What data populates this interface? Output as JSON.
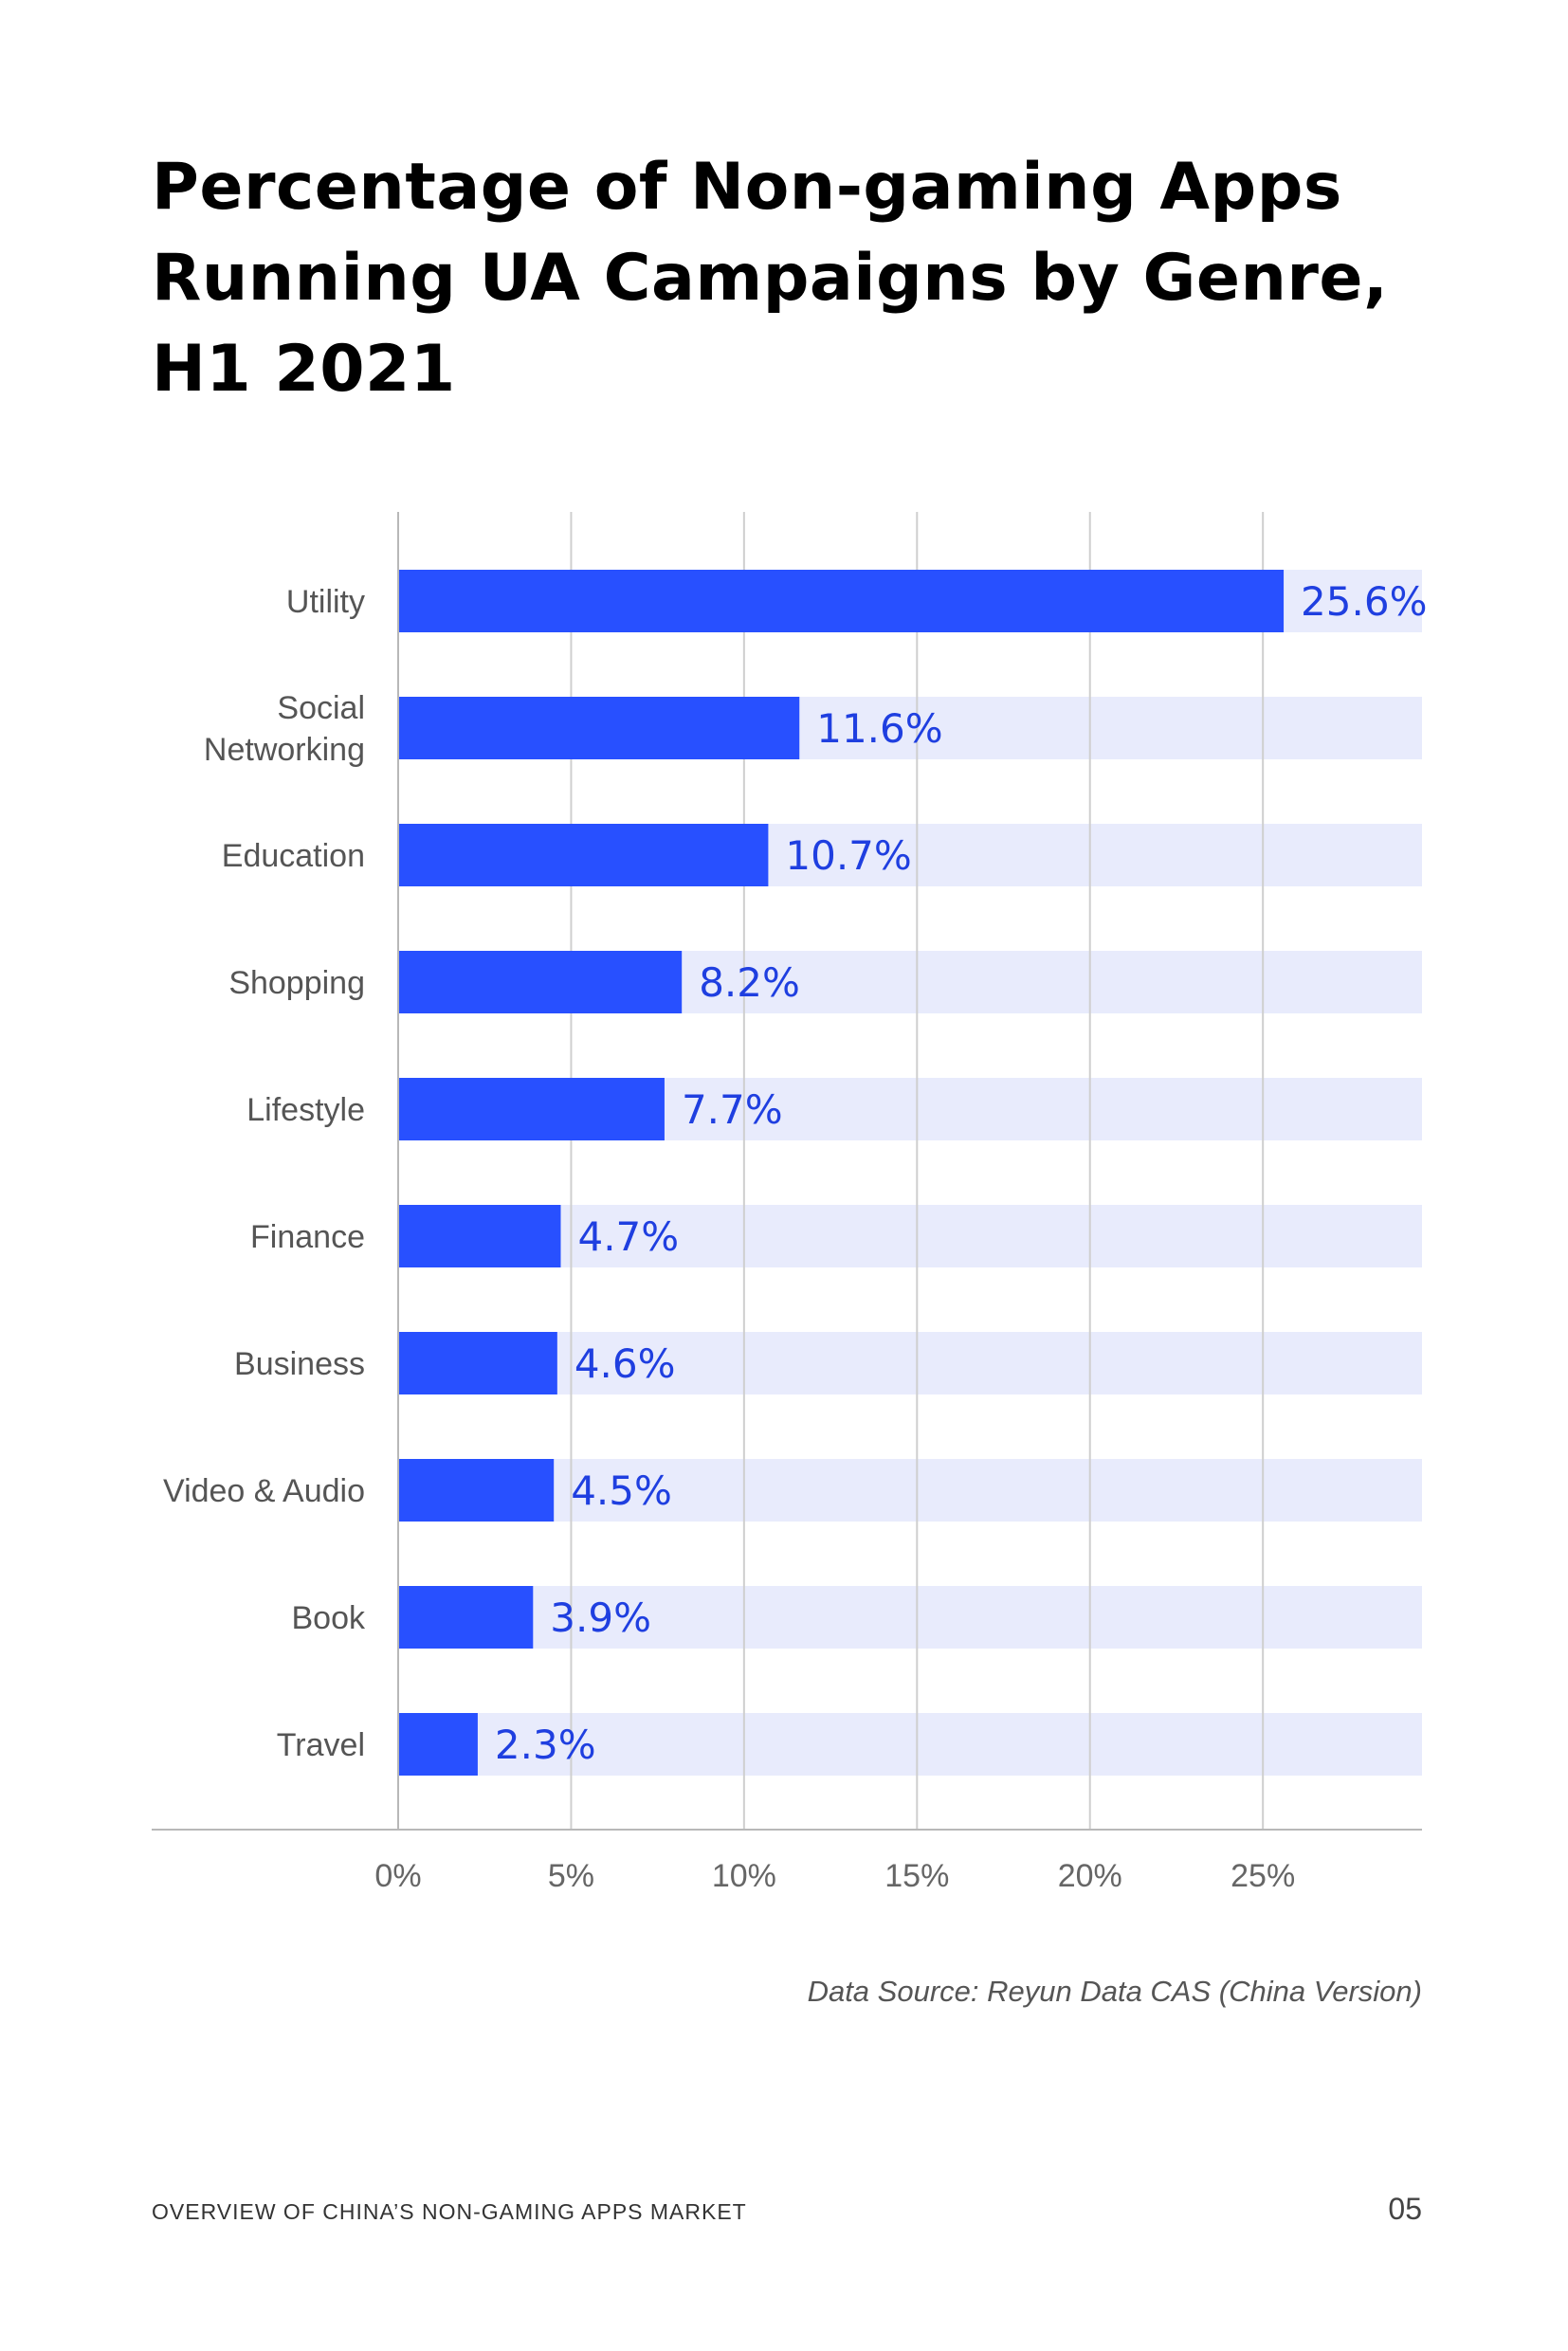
{
  "page": {
    "title_lines": [
      "Percentage of Non-gaming Apps",
      "Running UA Campaigns by Genre,",
      "H1 2021"
    ],
    "source": "Data Source: Reyun Data CAS (China Version)",
    "footer_left": "OVERVIEW OF CHINA’S NON-GAMING APPS MARKET",
    "page_number": "05"
  },
  "colors": {
    "bar": "#2850ff",
    "bar_background": "#e8ebfc",
    "value_label": "#1f3fe0",
    "category_label": "#555555",
    "grid": "#cfcfcf",
    "axis": "#b8b8b8"
  },
  "chart_data": {
    "type": "bar",
    "orientation": "horizontal",
    "title": "Percentage of Non-gaming Apps Running UA Campaigns by Genre, H1 2021",
    "categories": [
      [
        "Utility"
      ],
      [
        "Social",
        "Networking"
      ],
      [
        "Education"
      ],
      [
        "Shopping"
      ],
      [
        "Lifestyle"
      ],
      [
        "Finance"
      ],
      [
        "Business"
      ],
      [
        "Video & Audio"
      ],
      [
        "Book"
      ],
      [
        "Travel"
      ]
    ],
    "values": [
      25.6,
      11.6,
      10.7,
      8.2,
      7.7,
      4.7,
      4.6,
      4.5,
      3.9,
      2.3
    ],
    "value_labels": [
      "25.6%",
      "11.6%",
      "10.7%",
      "8.2%",
      "7.7%",
      "4.7%",
      "4.6%",
      "4.5%",
      "3.9%",
      "2.3%"
    ],
    "xticks": [
      0,
      5,
      10,
      15,
      20,
      25
    ],
    "xtick_labels": [
      "0%",
      "5%",
      "10%",
      "15%",
      "20%",
      "25%"
    ],
    "xlim": [
      0,
      29.6
    ],
    "grid": true,
    "legend": "none"
  }
}
